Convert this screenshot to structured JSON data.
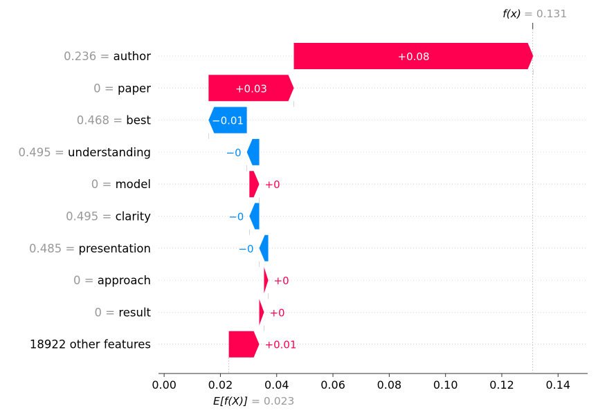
{
  "chart_data": {
    "type": "waterfall",
    "base_value": 0.023,
    "base_label": "E[f(X)]",
    "base_value_text": "= 0.023",
    "final_value": 0.131,
    "final_label": "f(x)",
    "final_value_text": "= 0.131",
    "xlim": [
      -0.002,
      0.1505
    ],
    "xticks": [
      0.0,
      0.02,
      0.04,
      0.06,
      0.08,
      0.1,
      0.12,
      0.14
    ],
    "xtick_labels": [
      "0.00",
      "0.02",
      "0.04",
      "0.06",
      "0.08",
      "0.10",
      "0.12",
      "0.14"
    ],
    "features": [
      {
        "value_text": "0.236 =",
        "name": "author",
        "start": 0.0461,
        "end": 0.1312,
        "label": "+0.08"
      },
      {
        "value_text": "0 =",
        "name": "paper",
        "start": 0.0158,
        "end": 0.0461,
        "label": "+0.03"
      },
      {
        "value_text": "0.468 =",
        "name": "best",
        "start": 0.0294,
        "end": 0.0158,
        "label": "−0.01"
      },
      {
        "value_text": "0.495 =",
        "name": "understanding",
        "start": 0.0338,
        "end": 0.0294,
        "label": "−0"
      },
      {
        "value_text": "0 =",
        "name": "model",
        "start": 0.0303,
        "end": 0.0338,
        "label": "+0"
      },
      {
        "value_text": "0.495 =",
        "name": "clarity",
        "start": 0.0338,
        "end": 0.0303,
        "label": "−0"
      },
      {
        "value_text": "0.485 =",
        "name": "presentation",
        "start": 0.037,
        "end": 0.0338,
        "label": "−0"
      },
      {
        "value_text": "0 =",
        "name": "approach",
        "start": 0.0355,
        "end": 0.037,
        "label": "+0"
      },
      {
        "value_text": "0 =",
        "name": "result",
        "start": 0.0338,
        "end": 0.0355,
        "label": "+0"
      },
      {
        "value_text": "",
        "name": "18922 other features",
        "start": 0.023,
        "end": 0.0338,
        "label": "+0.01"
      }
    ],
    "colors": {
      "positive": "#ff0051",
      "negative": "#008bfb"
    }
  }
}
